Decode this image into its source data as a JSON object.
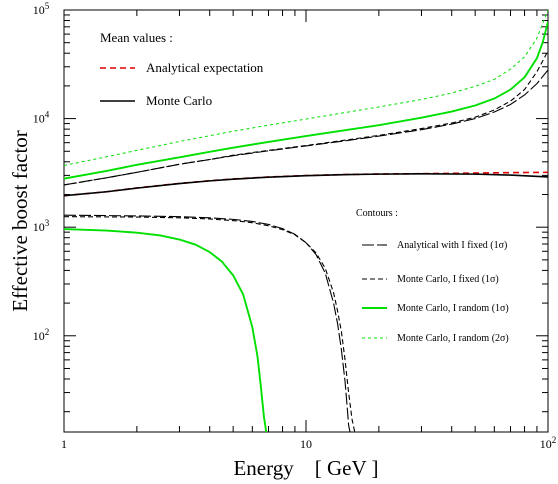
{
  "chart_data": {
    "type": "line",
    "title": "",
    "xlabel": "Energy    [ GeV ]",
    "ylabel": "Effective boost factor",
    "xscale": "log",
    "yscale": "log",
    "xlim": [
      1,
      100
    ],
    "ylim": [
      13,
      100000
    ],
    "x_ticks": [
      {
        "value": 1,
        "label": "1"
      },
      {
        "value": 10,
        "label": "10"
      },
      {
        "value": 100,
        "label": "10",
        "sup": "2"
      }
    ],
    "y_ticks": [
      {
        "value": 100,
        "label": "10",
        "sup": "2"
      },
      {
        "value": 1000,
        "label": "10",
        "sup": "3"
      },
      {
        "value": 10000,
        "label": "10",
        "sup": "4"
      },
      {
        "value": 100000,
        "label": "10",
        "sup": "5"
      }
    ],
    "grid": false,
    "legends": {
      "mean": {
        "title": "Mean values :",
        "entries": [
          {
            "label": "Analytical expectation",
            "color": "#e00000",
            "dash": "dashed"
          },
          {
            "label": "Monte Carlo",
            "color": "#000000",
            "dash": "solid"
          }
        ]
      },
      "contours": {
        "title": "Contours :",
        "entries": [
          {
            "label": "Analytical with I fixed (1σ)",
            "color": "#000000",
            "dash": "long-dash"
          },
          {
            "label": "Monte Carlo, I fixed (1σ)",
            "color": "#000000",
            "dash": "short-dash"
          },
          {
            "label": "Monte Carlo, I random (1σ)",
            "color": "#00e000",
            "dash": "solid"
          },
          {
            "label": "Monte Carlo, I random (2σ)",
            "color": "#00e000",
            "dash": "fine-dash"
          }
        ]
      }
    },
    "series": [
      {
        "id": "mean-analytical",
        "color": "#e00000",
        "dash": "dashed",
        "width": 1.6,
        "x": [
          1,
          1.5,
          2,
          3,
          4,
          5,
          7,
          10,
          15,
          20,
          30,
          50,
          70,
          100
        ],
        "y": [
          1950,
          2120,
          2300,
          2530,
          2680,
          2780,
          2900,
          2990,
          3060,
          3090,
          3110,
          3150,
          3180,
          3200
        ]
      },
      {
        "id": "mean-montecarlo",
        "color": "#000000",
        "dash": "solid",
        "width": 1.6,
        "x": [
          1,
          1.5,
          2,
          3,
          4,
          5,
          7,
          10,
          15,
          20,
          30,
          50,
          70,
          100
        ],
        "y": [
          1950,
          2120,
          2290,
          2520,
          2670,
          2770,
          2890,
          2980,
          3050,
          3080,
          3100,
          3080,
          3020,
          2900
        ]
      },
      {
        "id": "upper-analytical-fixed",
        "color": "#000000",
        "dash": "long-dash",
        "width": 1.1,
        "x": [
          1,
          1.5,
          2,
          3,
          4,
          5,
          7,
          10,
          15,
          20,
          30,
          40,
          50,
          60,
          70,
          80,
          90,
          100
        ],
        "y": [
          2450,
          2850,
          3200,
          3800,
          4200,
          4550,
          5050,
          5600,
          6300,
          6900,
          7900,
          8900,
          10000,
          11500,
          13500,
          16500,
          21000,
          28000
        ]
      },
      {
        "id": "upper-mc-fixed",
        "color": "#000000",
        "dash": "short-dash",
        "width": 1.1,
        "x": [
          1,
          1.5,
          2,
          3,
          4,
          5,
          7,
          10,
          15,
          20,
          30,
          40,
          50,
          60,
          70,
          80,
          90,
          100
        ],
        "y": [
          2450,
          2850,
          3200,
          3800,
          4200,
          4600,
          5100,
          5650,
          6400,
          7000,
          8100,
          9100,
          10300,
          12000,
          14500,
          18500,
          27000,
          42000
        ]
      },
      {
        "id": "upper-mc-random-1s",
        "color": "#00e000",
        "dash": "solid",
        "width": 1.9,
        "x": [
          1,
          1.5,
          2,
          3,
          4,
          5,
          7,
          10,
          15,
          20,
          30,
          40,
          50,
          60,
          70,
          80,
          90,
          95,
          100
        ],
        "y": [
          2800,
          3300,
          3750,
          4400,
          4950,
          5400,
          6100,
          6900,
          7900,
          8700,
          10200,
          11600,
          13200,
          15300,
          18500,
          24000,
          36000,
          50000,
          78000
        ]
      },
      {
        "id": "upper-mc-random-2s",
        "color": "#00e000",
        "dash": "fine-dash",
        "width": 1.0,
        "x": [
          1,
          1.5,
          2,
          3,
          4,
          5,
          7,
          10,
          15,
          20,
          30,
          40,
          50,
          60,
          70,
          80,
          90,
          95,
          100
        ],
        "y": [
          3700,
          4450,
          5100,
          6150,
          6950,
          7650,
          8700,
          9900,
          11500,
          12800,
          15000,
          17200,
          19800,
          23000,
          28500,
          37000,
          55000,
          75000,
          100000
        ]
      },
      {
        "id": "lower-analytical-fixed",
        "color": "#000000",
        "dash": "long-dash",
        "width": 1.1,
        "x": [
          1,
          2,
          3,
          4,
          5,
          6,
          7,
          8,
          9,
          10,
          11,
          12,
          13,
          13.5,
          14,
          14.5,
          14.8,
          15,
          15.2
        ],
        "y": [
          1290,
          1270,
          1250,
          1220,
          1180,
          1130,
          1060,
          970,
          860,
          720,
          560,
          380,
          200,
          130,
          75,
          38,
          22,
          15,
          13
        ]
      },
      {
        "id": "lower-mc-fixed",
        "color": "#000000",
        "dash": "short-dash",
        "width": 1.1,
        "x": [
          1,
          2,
          3,
          4,
          5,
          6,
          7,
          8,
          9,
          10,
          11,
          12,
          13,
          13.5,
          14,
          14.5,
          15,
          15.5,
          15.9
        ],
        "y": [
          1250,
          1240,
          1220,
          1190,
          1150,
          1100,
          1030,
          950,
          850,
          720,
          580,
          420,
          250,
          170,
          110,
          60,
          30,
          17,
          13
        ]
      },
      {
        "id": "lower-mc-random-1s",
        "color": "#00e000",
        "dash": "solid",
        "width": 1.9,
        "x": [
          1,
          1.5,
          2,
          2.5,
          3,
          3.5,
          4,
          4.5,
          5,
          5.5,
          6,
          6.3,
          6.5,
          6.7,
          6.85
        ],
        "y": [
          960,
          930,
          890,
          840,
          770,
          690,
          590,
          480,
          360,
          240,
          120,
          65,
          35,
          18,
          13
        ]
      }
    ]
  }
}
